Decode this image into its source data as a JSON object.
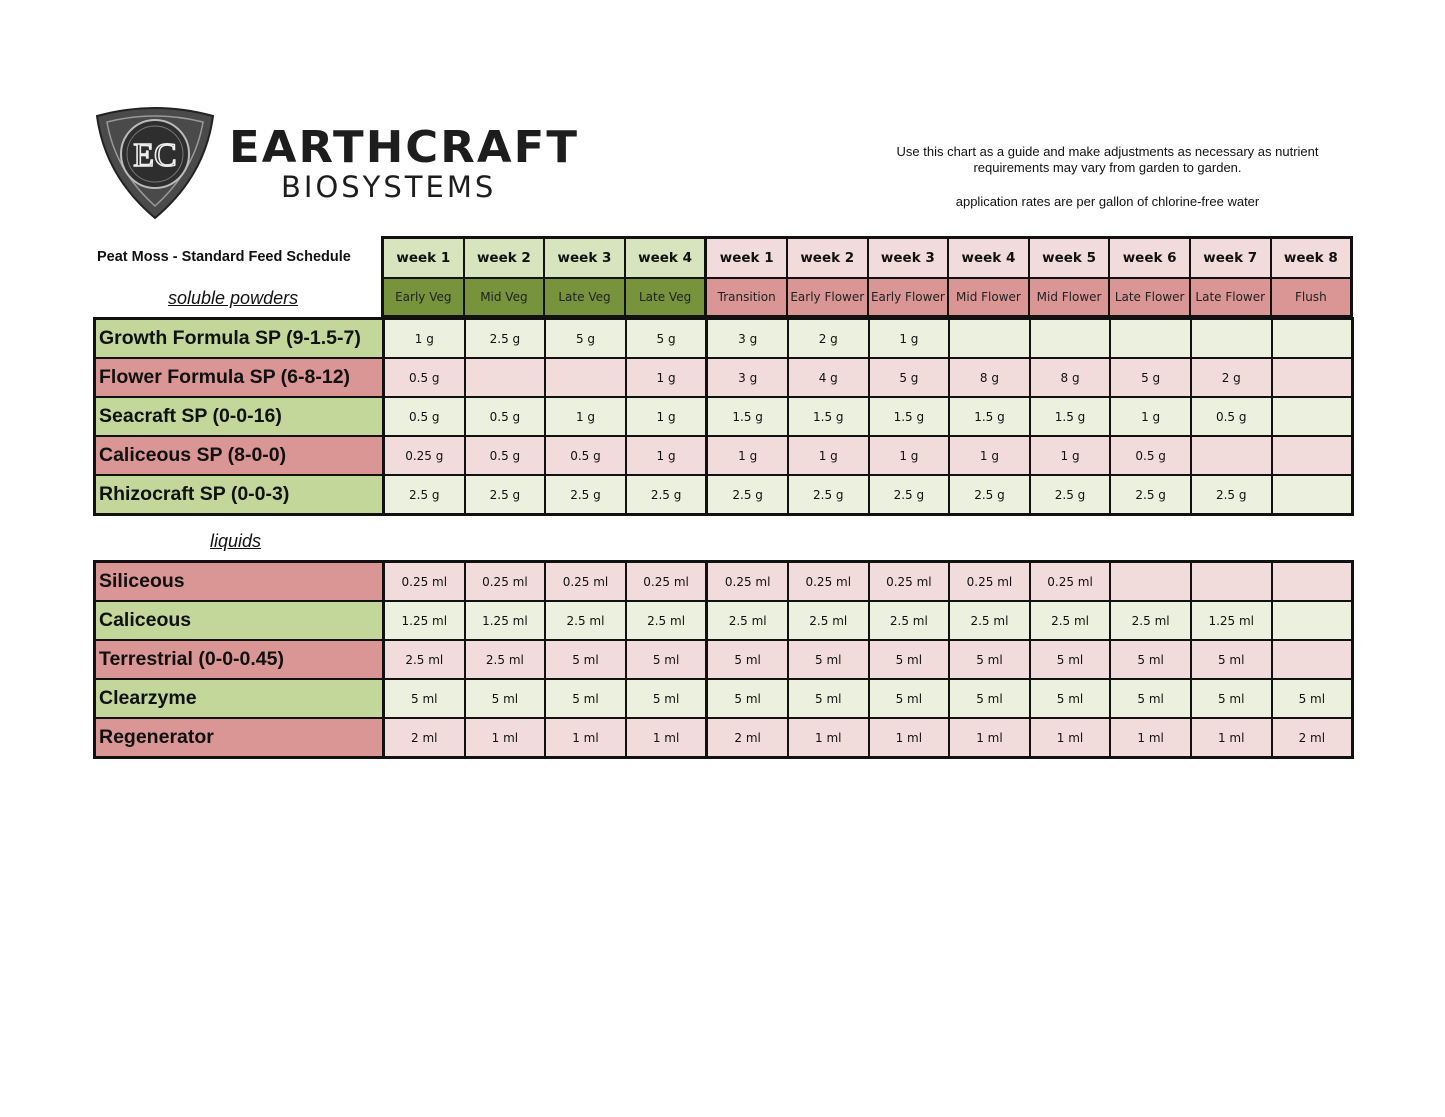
{
  "logo": {
    "initials": "EC",
    "brand_line1": "EARTHCRAFT",
    "brand_line2": "BIOSYSTEMS"
  },
  "notes": {
    "guide": "Use this chart as a guide and make adjustments as necessary as nutrient requirements may vary from garden to garden.",
    "rates": "application rates are per gallon of chlorine-free water"
  },
  "title": "Peat Moss - Standard Feed Schedule",
  "colors": {
    "veg_week": "#d7e4bd",
    "veg_stage": "#77933c",
    "flower_week": "#f2dcdb",
    "flower_stage": "#d99694",
    "green_label": "#c4d79b",
    "pink_label": "#da9694",
    "green_cell": "#ebf1de",
    "pink_cell": "#f2dcdb"
  },
  "columns": [
    {
      "week": "week 1",
      "stage": "Early Veg",
      "phase": "veg"
    },
    {
      "week": "week 2",
      "stage": "Mid Veg",
      "phase": "veg"
    },
    {
      "week": "week 3",
      "stage": "Late Veg",
      "phase": "veg"
    },
    {
      "week": "week 4",
      "stage": "Late Veg",
      "phase": "veg"
    },
    {
      "week": "week 1",
      "stage": "Transition",
      "phase": "flower"
    },
    {
      "week": "week 2",
      "stage": "Early Flower",
      "phase": "flower"
    },
    {
      "week": "week 3",
      "stage": "Early Flower",
      "phase": "flower"
    },
    {
      "week": "week 4",
      "stage": "Mid Flower",
      "phase": "flower"
    },
    {
      "week": "week 5",
      "stage": "Mid Flower",
      "phase": "flower"
    },
    {
      "week": "week 6",
      "stage": "Late Flower",
      "phase": "flower"
    },
    {
      "week": "week 7",
      "stage": "Late Flower",
      "phase": "flower"
    },
    {
      "week": "week 8",
      "stage": "Flush",
      "phase": "flower"
    }
  ],
  "sections": [
    {
      "label": "soluble powders",
      "rows": [
        {
          "name": "Growth Formula SP (9-1.5-7)",
          "color": "green",
          "values": [
            "1 g",
            "2.5 g",
            "5 g",
            "5 g",
            "3 g",
            "2 g",
            "1 g",
            "",
            "",
            "",
            "",
            ""
          ]
        },
        {
          "name": "Flower Formula SP (6-8-12)",
          "color": "pink",
          "values": [
            "0.5 g",
            "",
            "",
            "1 g",
            "3 g",
            "4 g",
            "5 g",
            "8 g",
            "8 g",
            "5 g",
            "2 g",
            ""
          ]
        },
        {
          "name": "Seacraft SP (0-0-16)",
          "color": "green",
          "values": [
            "0.5 g",
            "0.5 g",
            "1 g",
            "1 g",
            "1.5 g",
            "1.5 g",
            "1.5 g",
            "1.5 g",
            "1.5 g",
            "1 g",
            "0.5 g",
            ""
          ]
        },
        {
          "name": "Caliceous SP (8-0-0)",
          "color": "pink",
          "values": [
            "0.25 g",
            "0.5 g",
            "0.5 g",
            "1 g",
            "1 g",
            "1 g",
            "1 g",
            "1 g",
            "1 g",
            "0.5 g",
            "",
            ""
          ]
        },
        {
          "name": "Rhizocraft SP (0-0-3)",
          "color": "green",
          "values": [
            "2.5 g",
            "2.5 g",
            "2.5 g",
            "2.5 g",
            "2.5 g",
            "2.5 g",
            "2.5 g",
            "2.5 g",
            "2.5 g",
            "2.5 g",
            "2.5 g",
            ""
          ]
        }
      ]
    },
    {
      "label": "liquids",
      "rows": [
        {
          "name": "Siliceous",
          "color": "pink",
          "values": [
            "0.25 ml",
            "0.25 ml",
            "0.25 ml",
            "0.25 ml",
            "0.25 ml",
            "0.25 ml",
            "0.25 ml",
            "0.25 ml",
            "0.25 ml",
            "",
            "",
            ""
          ]
        },
        {
          "name": "Caliceous",
          "color": "green",
          "values": [
            "1.25 ml",
            "1.25 ml",
            "2.5 ml",
            "2.5 ml",
            "2.5 ml",
            "2.5 ml",
            "2.5 ml",
            "2.5 ml",
            "2.5 ml",
            "2.5 ml",
            "1.25 ml",
            ""
          ]
        },
        {
          "name": "Terrestrial (0-0-0.45)",
          "color": "pink",
          "values": [
            "2.5 ml",
            "2.5 ml",
            "5 ml",
            "5 ml",
            "5 ml",
            "5 ml",
            "5 ml",
            "5 ml",
            "5 ml",
            "5 ml",
            "5 ml",
            ""
          ]
        },
        {
          "name": "Clearzyme",
          "color": "green",
          "values": [
            "5 ml",
            "5 ml",
            "5 ml",
            "5 ml",
            "5 ml",
            "5 ml",
            "5 ml",
            "5 ml",
            "5 ml",
            "5 ml",
            "5 ml",
            "5 ml"
          ]
        },
        {
          "name": "Regenerator",
          "color": "pink",
          "values": [
            "2 ml",
            "1 ml",
            "1 ml",
            "1 ml",
            "2 ml",
            "1 ml",
            "1 ml",
            "1 ml",
            "1 ml",
            "1 ml",
            "1 ml",
            "2 ml"
          ]
        }
      ]
    }
  ]
}
